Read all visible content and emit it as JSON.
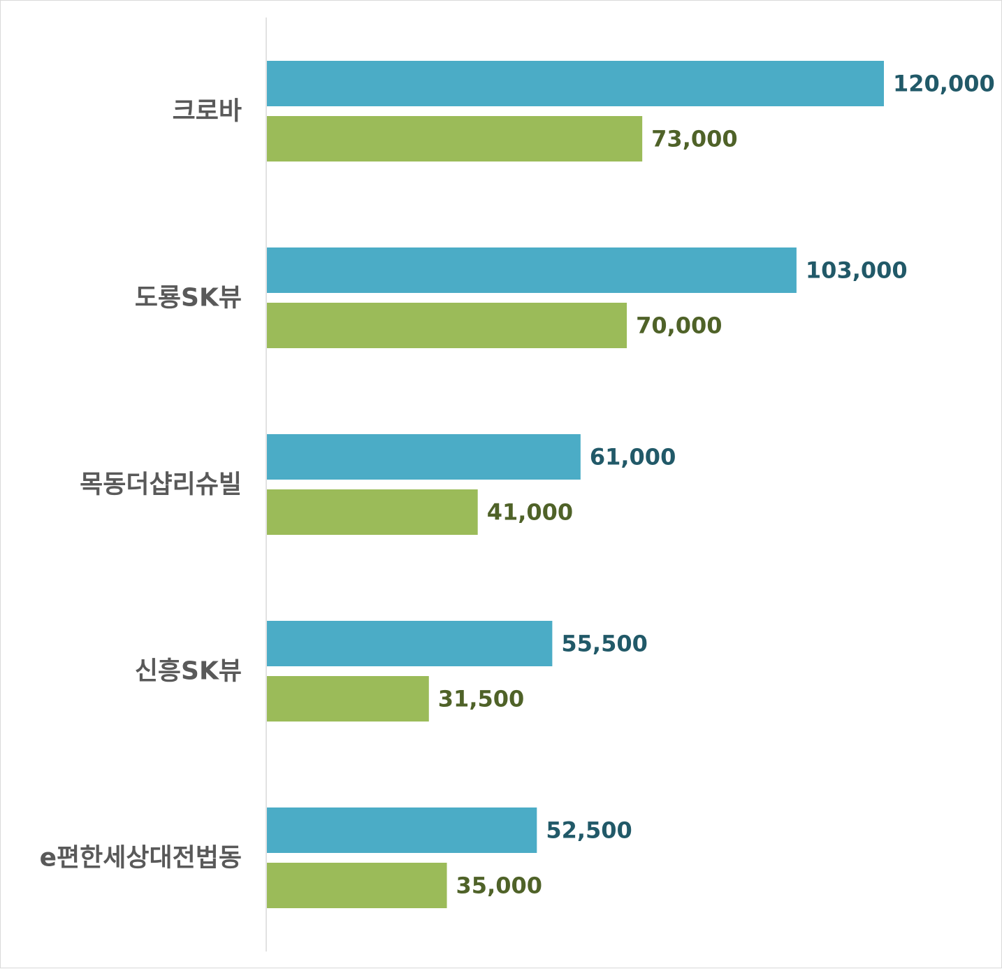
{
  "chart_data": {
    "type": "bar",
    "orientation": "horizontal",
    "categories": [
      "크로바",
      "도룡SK뷰",
      "목동더샵리슈빌",
      "신흥SK뷰",
      "e편한세상대전법동"
    ],
    "series": [
      {
        "values": [
          120000,
          103000,
          61000,
          55500,
          52500
        ],
        "color": "#4bacc6",
        "label_color": "#215968"
      },
      {
        "values": [
          73000,
          70000,
          41000,
          31500,
          35000
        ],
        "color": "#9bbb59",
        "label_color": "#4f6228"
      }
    ],
    "value_labels": [
      [
        "120,000",
        "103,000",
        "61,000",
        "55,500",
        "52,500"
      ],
      [
        "73,000",
        "70,000",
        "41,000",
        "31,500",
        "35,000"
      ]
    ],
    "xlim": [
      0,
      120000
    ],
    "grid": false,
    "legend": "none",
    "title": "",
    "xlabel": "",
    "ylabel": "",
    "axis_color": "#d9d9d9",
    "category_label_color": "#595959"
  }
}
